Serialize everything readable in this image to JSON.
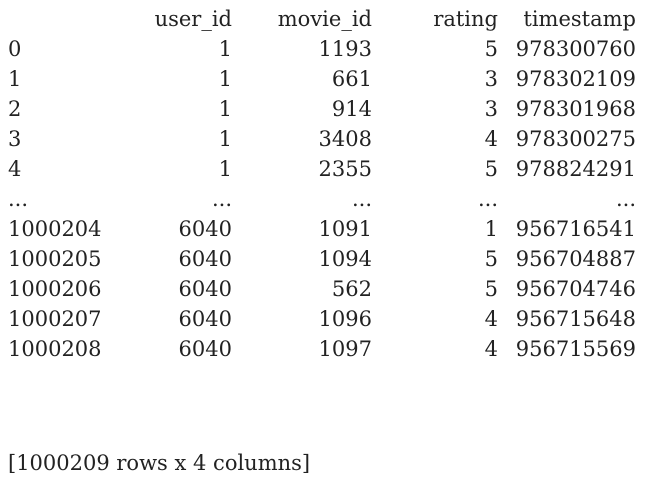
{
  "dataframe": {
    "columns": [
      "user_id",
      "movie_id",
      "rating",
      "timestamp"
    ],
    "rows": [
      {
        "index": "0",
        "cells": [
          "1",
          "1193",
          "5",
          "978300760"
        ]
      },
      {
        "index": "1",
        "cells": [
          "1",
          "661",
          "3",
          "978302109"
        ]
      },
      {
        "index": "2",
        "cells": [
          "1",
          "914",
          "3",
          "978301968"
        ]
      },
      {
        "index": "3",
        "cells": [
          "1",
          "3408",
          "4",
          "978300275"
        ]
      },
      {
        "index": "4",
        "cells": [
          "1",
          "2355",
          "5",
          "978824291"
        ]
      },
      {
        "index": "...",
        "cells": [
          "...",
          "...",
          "...",
          "..."
        ]
      },
      {
        "index": "1000204",
        "cells": [
          "6040",
          "1091",
          "1",
          "956716541"
        ]
      },
      {
        "index": "1000205",
        "cells": [
          "6040",
          "1094",
          "5",
          "956704887"
        ]
      },
      {
        "index": "1000206",
        "cells": [
          "6040",
          "562",
          "5",
          "956704746"
        ]
      },
      {
        "index": "1000207",
        "cells": [
          "6040",
          "1096",
          "4",
          "956715648"
        ]
      },
      {
        "index": "1000208",
        "cells": [
          "6040",
          "1097",
          "4",
          "956715569"
        ]
      }
    ],
    "summary": "[1000209 rows x 4 columns]"
  }
}
